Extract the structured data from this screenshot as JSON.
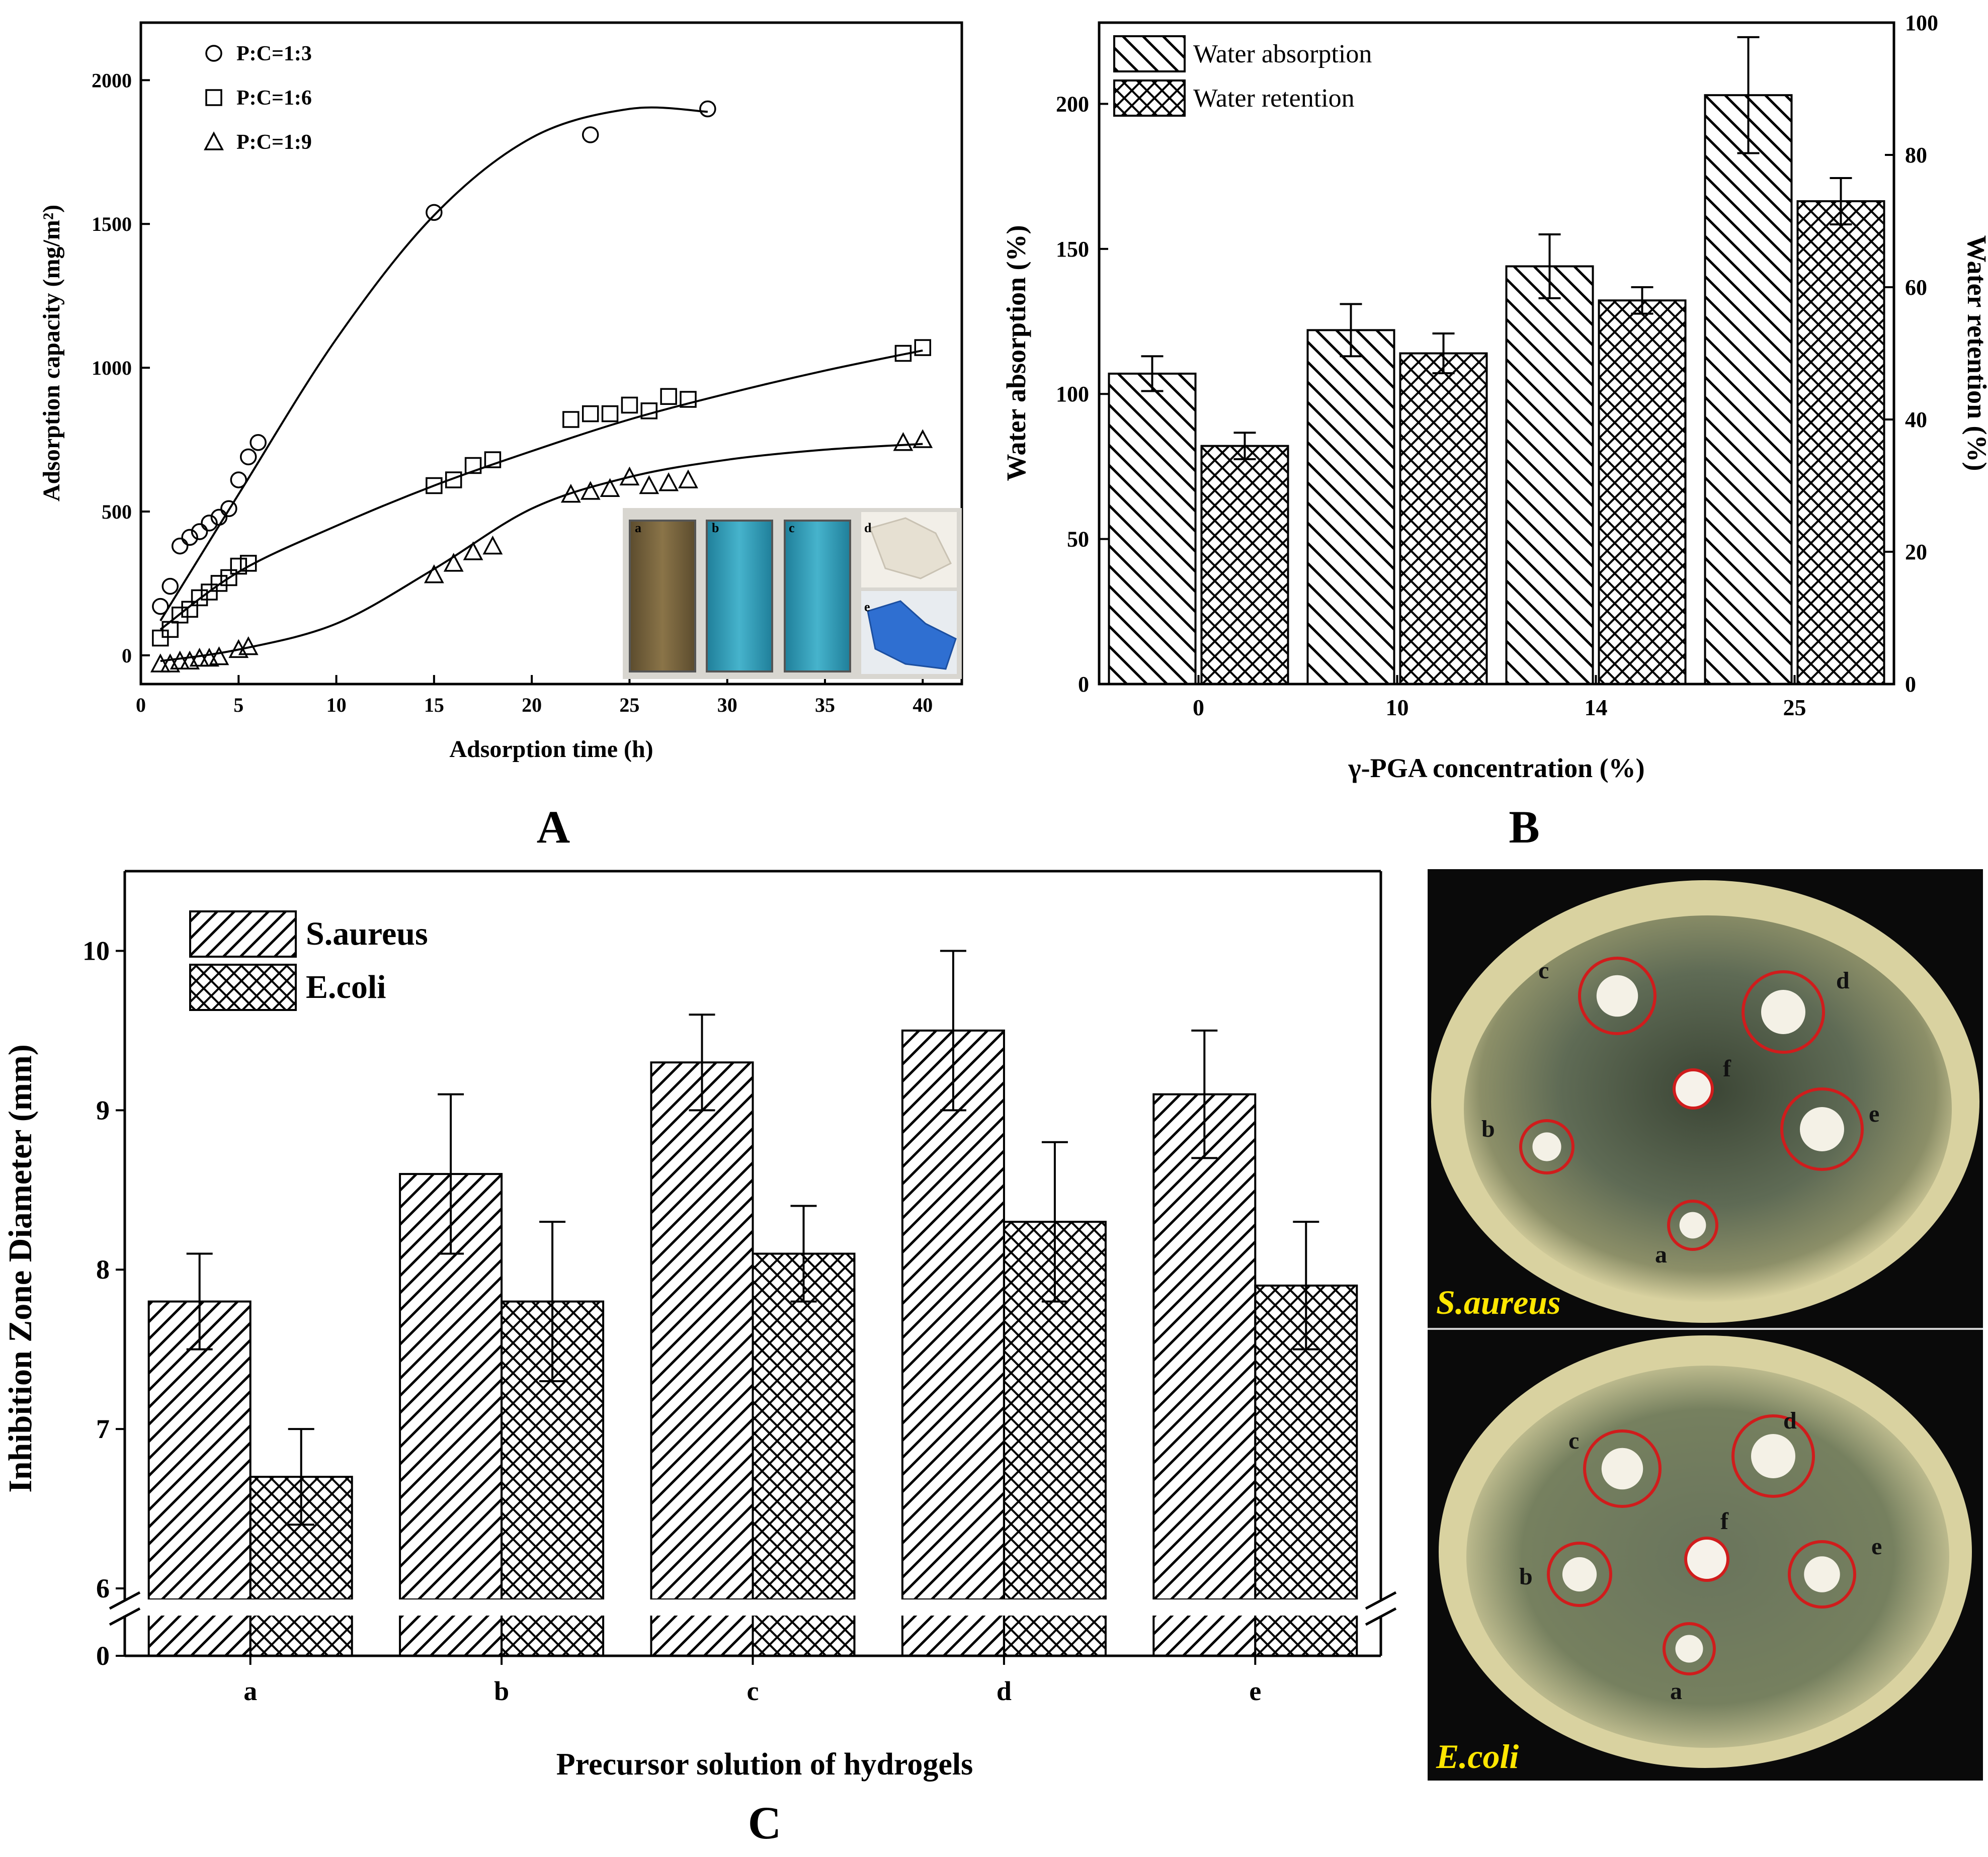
{
  "figure": {
    "panel_labels": [
      "A",
      "B",
      "C"
    ]
  },
  "colors": {
    "axis": "#000000",
    "photo_background": "#0a0a0a",
    "plate_agar": "#d9d2a0",
    "plate_bacteria": "#5f6b55",
    "inhibition_ring": "#d01c1c",
    "photo_label": "#ffe600",
    "vial_brown": "#7a6640",
    "vial_blue": "#3aa6c0",
    "hydrogel_blue": "#2f6fd1"
  },
  "chart_data": [
    {
      "id": "A",
      "type": "scatter",
      "xlabel": "Adsorption time (h)",
      "ylabel": "Adsorption capacity (mg/m²)",
      "xlim": [
        0,
        42
      ],
      "ylim": [
        -100,
        2200
      ],
      "xticks": [
        0,
        5,
        10,
        15,
        20,
        25,
        30,
        35,
        40
      ],
      "yticks": [
        0,
        500,
        1000,
        1500,
        2000
      ],
      "grid": false,
      "legend_position": "top-left",
      "fit_lines": true,
      "series": [
        {
          "name": "P:C=1:3",
          "marker": "circle",
          "x": [
            1,
            1.5,
            2,
            2.5,
            3,
            3.5,
            4,
            4.5,
            5,
            5.5,
            6,
            15,
            23,
            29
          ],
          "y": [
            170,
            240,
            380,
            410,
            430,
            460,
            480,
            510,
            610,
            690,
            740,
            1540,
            1810,
            1900
          ],
          "fit_x": [
            1,
            5,
            10,
            15,
            20,
            25,
            29
          ],
          "fit_y": [
            120,
            560,
            1100,
            1530,
            1800,
            1900,
            1890
          ]
        },
        {
          "name": "P:C=1:6",
          "marker": "square",
          "x": [
            1,
            1.5,
            2,
            2.5,
            3,
            3.5,
            4,
            4.5,
            5,
            5.5,
            15,
            16,
            17,
            18,
            22,
            23,
            24,
            25,
            26,
            27,
            28,
            39,
            40
          ],
          "y": [
            60,
            90,
            140,
            160,
            200,
            220,
            250,
            270,
            310,
            320,
            590,
            610,
            660,
            680,
            820,
            840,
            840,
            870,
            850,
            900,
            890,
            1050,
            1070
          ],
          "fit_x": [
            1,
            5,
            10,
            15,
            20,
            25,
            30,
            35,
            40
          ],
          "fit_y": [
            90,
            290,
            450,
            590,
            710,
            820,
            910,
            990,
            1060
          ]
        },
        {
          "name": "P:C=1:9",
          "marker": "triangle",
          "x": [
            1,
            1.5,
            2,
            2.5,
            3,
            3.5,
            4,
            5,
            5.5,
            15,
            16,
            17,
            18,
            22,
            23,
            24,
            25,
            26,
            27,
            28,
            39,
            40
          ],
          "y": [
            -30,
            -30,
            -20,
            -20,
            -10,
            -10,
            -5,
            20,
            30,
            280,
            320,
            360,
            380,
            560,
            570,
            580,
            620,
            590,
            600,
            610,
            740,
            750
          ],
          "fit_x": [
            1,
            5,
            10,
            15,
            20,
            25,
            30,
            35,
            40
          ],
          "fit_y": [
            -20,
            20,
            110,
            300,
            510,
            620,
            680,
            715,
            735
          ]
        }
      ]
    },
    {
      "id": "B",
      "type": "bar",
      "xlabel": "γ-PGA concentration (%)",
      "ylabel": "Water absorption (%)",
      "ylabel_right": "Water retention (%)",
      "categories": [
        "0",
        "10",
        "14",
        "25"
      ],
      "ylim": [
        0,
        228
      ],
      "ylim_right": [
        0,
        100
      ],
      "yticks": [
        0,
        50,
        100,
        150,
        200
      ],
      "yticks_right": [
        0,
        20,
        40,
        60,
        80,
        100
      ],
      "legend_position": "top-left",
      "series": [
        {
          "name": "Water absorption",
          "axis": "left",
          "pattern": "hatch-diagonal",
          "values": [
            107,
            122,
            144,
            203
          ],
          "errors": [
            6,
            9,
            11,
            20
          ]
        },
        {
          "name": "Water retention",
          "axis": "right",
          "pattern": "crosshatch",
          "values": [
            36,
            50,
            58,
            73
          ],
          "errors": [
            2,
            3,
            2,
            3.5
          ]
        }
      ]
    },
    {
      "id": "C",
      "type": "bar",
      "xlabel": "Precursor solution of hydrogels",
      "ylabel": "Inhibition Zone Diameter (mm)",
      "categories": [
        "a",
        "b",
        "c",
        "d",
        "e"
      ],
      "ylim": [
        0,
        10.5
      ],
      "axis_break": [
        0,
        6
      ],
      "yticks": [
        0,
        6,
        7,
        8,
        9,
        10
      ],
      "legend_position": "top-left",
      "series": [
        {
          "name": "S.aureus",
          "pattern": "hatch-diagonal",
          "values": [
            7.8,
            8.6,
            9.3,
            9.5,
            9.1
          ],
          "errors": [
            0.3,
            0.5,
            0.3,
            0.5,
            0.4
          ]
        },
        {
          "name": "E.coli",
          "pattern": "crosshatch",
          "values": [
            6.7,
            7.8,
            8.1,
            8.3,
            7.9
          ],
          "errors": [
            0.3,
            0.5,
            0.3,
            0.5,
            0.4
          ]
        }
      ]
    }
  ],
  "inset_vials": {
    "labels": [
      "a",
      "b",
      "c",
      "d",
      "e"
    ]
  },
  "plates": [
    {
      "organism": "S.aureus",
      "disc_labels": [
        "a",
        "b",
        "c",
        "d",
        "e",
        "f"
      ]
    },
    {
      "organism": "E.coli",
      "disc_labels": [
        "a",
        "b",
        "c",
        "d",
        "e",
        "f"
      ]
    }
  ]
}
